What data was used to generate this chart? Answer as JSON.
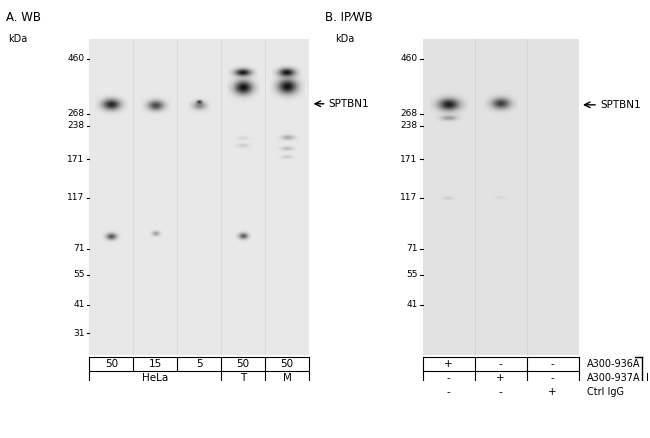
{
  "panel_A_title": "A. WB",
  "panel_B_title": "B. IP⁄WB",
  "kda_label": "kDa",
  "marker_values_A": [
    460,
    268,
    238,
    171,
    117,
    71,
    55,
    41,
    31
  ],
  "marker_values_B": [
    460,
    268,
    238,
    171,
    117,
    71,
    55,
    41
  ],
  "protein_label": "SPTBN1",
  "gel_bg": "#e8e8e8",
  "overall_bg": "#ffffff",
  "table_A_row1": [
    "50",
    "15",
    "5",
    "50",
    "50"
  ],
  "table_B_row1": [
    "+",
    "-",
    "-"
  ],
  "table_B_row2": [
    "-",
    "+",
    "-"
  ],
  "table_B_row3": [
    "-",
    "-",
    "+"
  ],
  "table_B_labels": [
    "A300-936A",
    "A300-937A",
    "Ctrl IgG"
  ],
  "table_B_IP_label": "IP"
}
